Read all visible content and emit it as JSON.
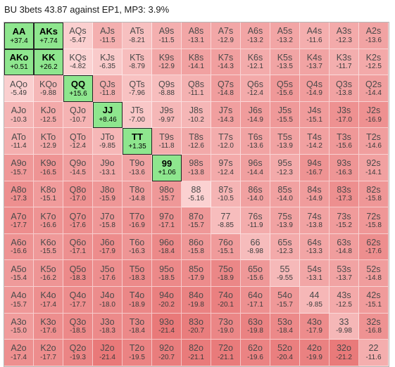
{
  "title": "BU 3bets 43.87 against EP1, MP3: 3.9%",
  "colors": {
    "positive": "#8ee68e",
    "selected_negative": "#ffffff",
    "border": "#222222"
  },
  "grid": [
    [
      {
        "hand": "AA",
        "ev": "+37.4"
      },
      {
        "hand": "AKs",
        "ev": "+7.74"
      },
      {
        "hand": "AQs",
        "ev": "-5.47"
      },
      {
        "hand": "AJs",
        "ev": "-11.5"
      },
      {
        "hand": "ATs",
        "ev": "-8.21"
      },
      {
        "hand": "A9s",
        "ev": "-11.5"
      },
      {
        "hand": "A8s",
        "ev": "-13.1"
      },
      {
        "hand": "A7s",
        "ev": "-12.9"
      },
      {
        "hand": "A6s",
        "ev": "-13.2"
      },
      {
        "hand": "A5s",
        "ev": "-13.2"
      },
      {
        "hand": "A4s",
        "ev": "-11.6"
      },
      {
        "hand": "A3s",
        "ev": "-12.3"
      },
      {
        "hand": "A2s",
        "ev": "-13.6"
      }
    ],
    [
      {
        "hand": "AKo",
        "ev": "+0.51"
      },
      {
        "hand": "KK",
        "ev": "+26.2"
      },
      {
        "hand": "KQs",
        "ev": "-4.82"
      },
      {
        "hand": "KJs",
        "ev": "-6.35"
      },
      {
        "hand": "KTs",
        "ev": "-8.79"
      },
      {
        "hand": "K9s",
        "ev": "-12.9"
      },
      {
        "hand": "K8s",
        "ev": "-14.1"
      },
      {
        "hand": "K7s",
        "ev": "-14.3"
      },
      {
        "hand": "K6s",
        "ev": "-12.1"
      },
      {
        "hand": "K5s",
        "ev": "-13.5"
      },
      {
        "hand": "K4s",
        "ev": "-13.7"
      },
      {
        "hand": "K3s",
        "ev": "-11.7"
      },
      {
        "hand": "K2s",
        "ev": "-12.5"
      }
    ],
    [
      {
        "hand": "AQo",
        "ev": "-5.49"
      },
      {
        "hand": "KQo",
        "ev": "-9.88"
      },
      {
        "hand": "QQ",
        "ev": "+15.6"
      },
      {
        "hand": "QJs",
        "ev": "-11.8"
      },
      {
        "hand": "QTs",
        "ev": "-7.96"
      },
      {
        "hand": "Q9s",
        "ev": "-8.88"
      },
      {
        "hand": "Q8s",
        "ev": "-11.1"
      },
      {
        "hand": "Q7s",
        "ev": "-14.8"
      },
      {
        "hand": "Q6s",
        "ev": "-12.4"
      },
      {
        "hand": "Q5s",
        "ev": "-15.6"
      },
      {
        "hand": "Q4s",
        "ev": "-14.9"
      },
      {
        "hand": "Q3s",
        "ev": "-13.8"
      },
      {
        "hand": "Q2s",
        "ev": "-14.4"
      }
    ],
    [
      {
        "hand": "AJo",
        "ev": "-10.3"
      },
      {
        "hand": "KJo",
        "ev": "-12.5"
      },
      {
        "hand": "QJo",
        "ev": "-10.7"
      },
      {
        "hand": "JJ",
        "ev": "+8.46"
      },
      {
        "hand": "JTs",
        "ev": "-7.00"
      },
      {
        "hand": "J9s",
        "ev": "-9.97"
      },
      {
        "hand": "J8s",
        "ev": "-10.2"
      },
      {
        "hand": "J7s",
        "ev": "-14.3"
      },
      {
        "hand": "J6s",
        "ev": "-14.9"
      },
      {
        "hand": "J5s",
        "ev": "-15.5"
      },
      {
        "hand": "J4s",
        "ev": "-15.1"
      },
      {
        "hand": "J3s",
        "ev": "-17.0"
      },
      {
        "hand": "J2s",
        "ev": "-16.9"
      }
    ],
    [
      {
        "hand": "ATo",
        "ev": "-11.4"
      },
      {
        "hand": "KTo",
        "ev": "-12.9"
      },
      {
        "hand": "QTo",
        "ev": "-12.4"
      },
      {
        "hand": "JTo",
        "ev": "-9.85"
      },
      {
        "hand": "TT",
        "ev": "+1.35"
      },
      {
        "hand": "T9s",
        "ev": "-11.8"
      },
      {
        "hand": "T8s",
        "ev": "-12.6"
      },
      {
        "hand": "T7s",
        "ev": "-12.0"
      },
      {
        "hand": "T6s",
        "ev": "-13.6"
      },
      {
        "hand": "T5s",
        "ev": "-13.9"
      },
      {
        "hand": "T4s",
        "ev": "-14.2"
      },
      {
        "hand": "T3s",
        "ev": "-15.6"
      },
      {
        "hand": "T2s",
        "ev": "-14.6"
      }
    ],
    [
      {
        "hand": "A9o",
        "ev": "-15.7"
      },
      {
        "hand": "K9o",
        "ev": "-16.5"
      },
      {
        "hand": "Q9o",
        "ev": "-14.5"
      },
      {
        "hand": "J9o",
        "ev": "-13.1"
      },
      {
        "hand": "T9o",
        "ev": "-13.6"
      },
      {
        "hand": "99",
        "ev": "+1.06"
      },
      {
        "hand": "98s",
        "ev": "-13.8"
      },
      {
        "hand": "97s",
        "ev": "-12.4"
      },
      {
        "hand": "96s",
        "ev": "-14.4"
      },
      {
        "hand": "95s",
        "ev": "-12.3"
      },
      {
        "hand": "94s",
        "ev": "-16.7"
      },
      {
        "hand": "93s",
        "ev": "-16.3"
      },
      {
        "hand": "92s",
        "ev": "-14.1"
      }
    ],
    [
      {
        "hand": "A8o",
        "ev": "-17.3"
      },
      {
        "hand": "K8o",
        "ev": "-15.1"
      },
      {
        "hand": "Q8o",
        "ev": "-17.0"
      },
      {
        "hand": "J8o",
        "ev": "-15.9"
      },
      {
        "hand": "T8o",
        "ev": "-14.8"
      },
      {
        "hand": "98o",
        "ev": "-15.7"
      },
      {
        "hand": "88",
        "ev": "-5.16"
      },
      {
        "hand": "87s",
        "ev": "-10.5"
      },
      {
        "hand": "86s",
        "ev": "-14.0"
      },
      {
        "hand": "85s",
        "ev": "-14.0"
      },
      {
        "hand": "84s",
        "ev": "-14.9"
      },
      {
        "hand": "83s",
        "ev": "-17.3"
      },
      {
        "hand": "82s",
        "ev": "-15.8"
      }
    ],
    [
      {
        "hand": "A7o",
        "ev": "-17.7"
      },
      {
        "hand": "K7o",
        "ev": "-16.6"
      },
      {
        "hand": "Q7o",
        "ev": "-17.6"
      },
      {
        "hand": "J7o",
        "ev": "-15.8"
      },
      {
        "hand": "T7o",
        "ev": "-16.9"
      },
      {
        "hand": "97o",
        "ev": "-17.1"
      },
      {
        "hand": "87o",
        "ev": "-15.7"
      },
      {
        "hand": "77",
        "ev": "-8.85"
      },
      {
        "hand": "76s",
        "ev": "-11.9"
      },
      {
        "hand": "75s",
        "ev": "-13.9"
      },
      {
        "hand": "74s",
        "ev": "-13.8"
      },
      {
        "hand": "73s",
        "ev": "-15.2"
      },
      {
        "hand": "72s",
        "ev": "-15.8"
      }
    ],
    [
      {
        "hand": "A6o",
        "ev": "-16.6"
      },
      {
        "hand": "K6o",
        "ev": "-15.5"
      },
      {
        "hand": "Q6o",
        "ev": "-17.1"
      },
      {
        "hand": "J6o",
        "ev": "-17.9"
      },
      {
        "hand": "T6o",
        "ev": "-16.3"
      },
      {
        "hand": "96o",
        "ev": "-18.4"
      },
      {
        "hand": "86o",
        "ev": "-15.8"
      },
      {
        "hand": "76o",
        "ev": "-15.1"
      },
      {
        "hand": "66",
        "ev": "-8.98"
      },
      {
        "hand": "65s",
        "ev": "-12.3"
      },
      {
        "hand": "64s",
        "ev": "-13.3"
      },
      {
        "hand": "63s",
        "ev": "-14.8"
      },
      {
        "hand": "62s",
        "ev": "-17.6"
      }
    ],
    [
      {
        "hand": "A5o",
        "ev": "-15.4"
      },
      {
        "hand": "K5o",
        "ev": "-16.2"
      },
      {
        "hand": "Q5o",
        "ev": "-18.3"
      },
      {
        "hand": "J5o",
        "ev": "-17.6"
      },
      {
        "hand": "T5o",
        "ev": "-18.3"
      },
      {
        "hand": "95o",
        "ev": "-18.5"
      },
      {
        "hand": "85o",
        "ev": "-17.9"
      },
      {
        "hand": "75o",
        "ev": "-18.9"
      },
      {
        "hand": "65o",
        "ev": "-15.6"
      },
      {
        "hand": "55",
        "ev": "-9.55"
      },
      {
        "hand": "54s",
        "ev": "-13.1"
      },
      {
        "hand": "53s",
        "ev": "-13.7"
      },
      {
        "hand": "52s",
        "ev": "-14.8"
      }
    ],
    [
      {
        "hand": "A4o",
        "ev": "-15.7"
      },
      {
        "hand": "K4o",
        "ev": "-17.4"
      },
      {
        "hand": "Q4o",
        "ev": "-17.7"
      },
      {
        "hand": "J4o",
        "ev": "-18.0"
      },
      {
        "hand": "T4o",
        "ev": "-18.9"
      },
      {
        "hand": "94o",
        "ev": "-20.2"
      },
      {
        "hand": "84o",
        "ev": "-19.8"
      },
      {
        "hand": "74o",
        "ev": "-20.1"
      },
      {
        "hand": "64o",
        "ev": "-17.1"
      },
      {
        "hand": "54o",
        "ev": "-15.7"
      },
      {
        "hand": "44",
        "ev": "-9.85"
      },
      {
        "hand": "43s",
        "ev": "-12.5"
      },
      {
        "hand": "42s",
        "ev": "-15.1"
      }
    ],
    [
      {
        "hand": "A3o",
        "ev": "-15.0"
      },
      {
        "hand": "K3o",
        "ev": "-17.6"
      },
      {
        "hand": "Q3o",
        "ev": "-18.5"
      },
      {
        "hand": "J3o",
        "ev": "-18.3"
      },
      {
        "hand": "T3o",
        "ev": "-18.4"
      },
      {
        "hand": "93o",
        "ev": "-21.4"
      },
      {
        "hand": "83o",
        "ev": "-20.7"
      },
      {
        "hand": "73o",
        "ev": "-19.0"
      },
      {
        "hand": "63o",
        "ev": "-19.8"
      },
      {
        "hand": "53o",
        "ev": "-18.4"
      },
      {
        "hand": "43o",
        "ev": "-17.9"
      },
      {
        "hand": "33",
        "ev": "-9.98"
      },
      {
        "hand": "32s",
        "ev": "-16.8"
      }
    ],
    [
      {
        "hand": "A2o",
        "ev": "-17.4"
      },
      {
        "hand": "K2o",
        "ev": "-17.7"
      },
      {
        "hand": "Q2o",
        "ev": "-19.3"
      },
      {
        "hand": "J2o",
        "ev": "-21.4"
      },
      {
        "hand": "T2o",
        "ev": "-19.5"
      },
      {
        "hand": "92o",
        "ev": "-20.7"
      },
      {
        "hand": "82o",
        "ev": "-21.1"
      },
      {
        "hand": "72o",
        "ev": "-21.1"
      },
      {
        "hand": "62o",
        "ev": "-19.6"
      },
      {
        "hand": "52o",
        "ev": "-20.4"
      },
      {
        "hand": "42o",
        "ev": "-19.9"
      },
      {
        "hand": "32o",
        "ev": "-21.2"
      },
      {
        "hand": "22",
        "ev": "-11.6"
      }
    ]
  ],
  "selected": [
    "AA",
    "AKs",
    "AKo",
    "KK",
    "QQ",
    "JJ",
    "TT",
    "99"
  ]
}
